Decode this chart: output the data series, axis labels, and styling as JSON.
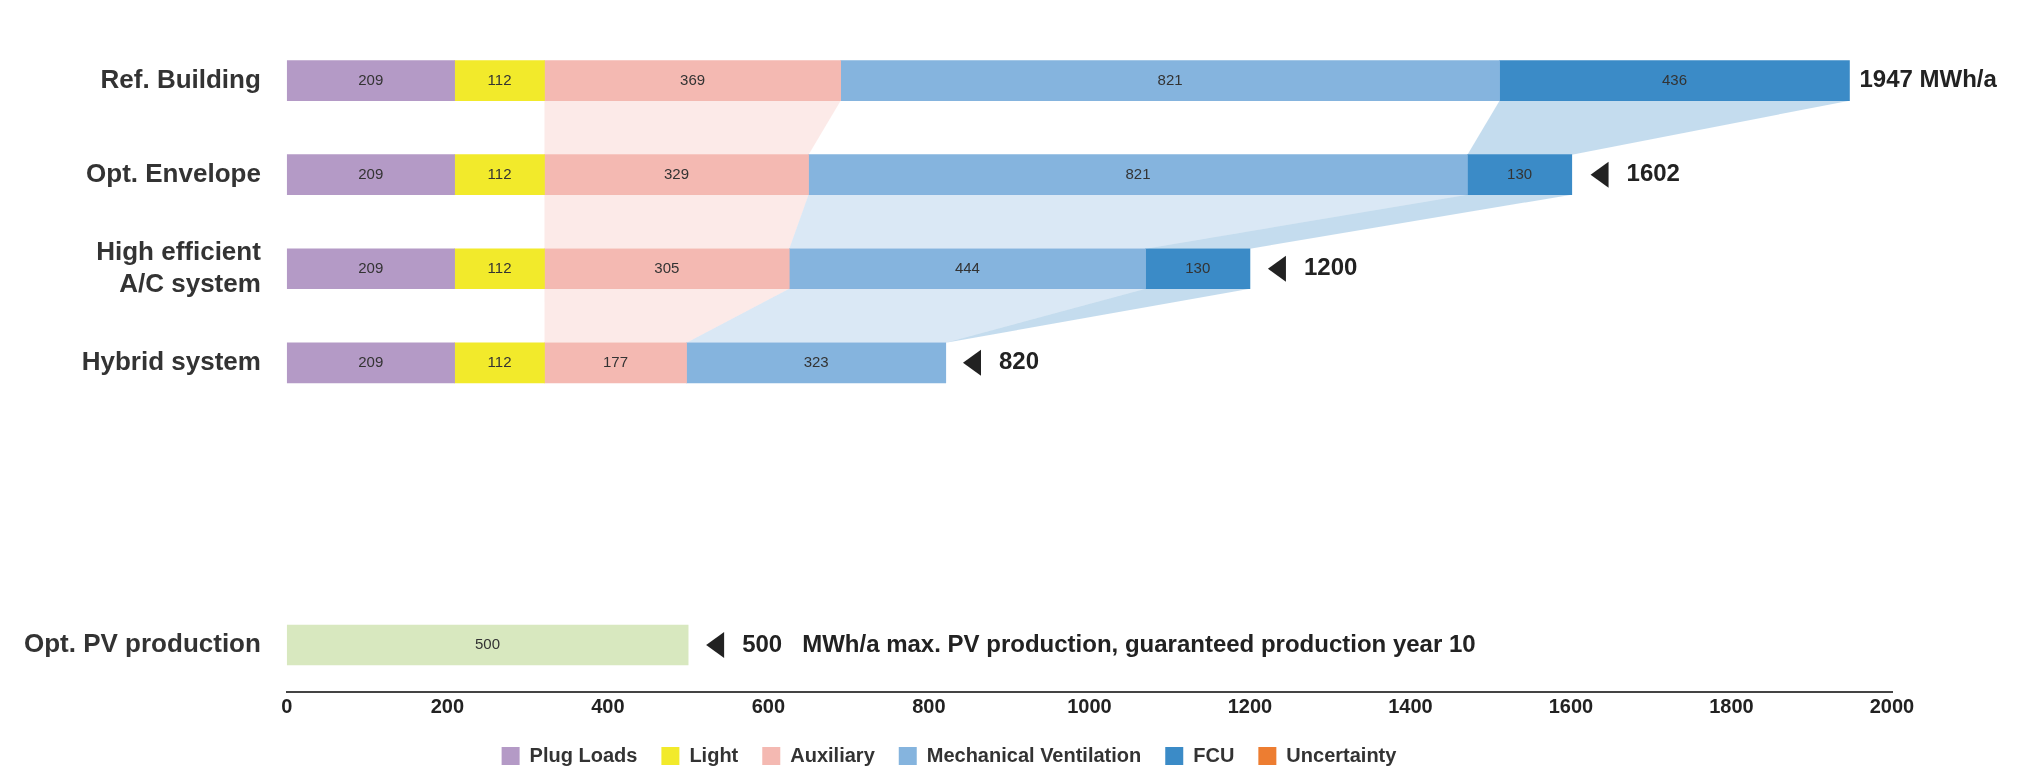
{
  "chart_data": {
    "type": "bar",
    "orientation": "horizontal",
    "stacked": true,
    "data_labels": true,
    "legend": "bottom",
    "categories": [
      "Ref. Building",
      "Opt. Envelope",
      "High efficient\nA/C system",
      "Hybrid system",
      null,
      null,
      "Opt. PV production"
    ],
    "series": [
      {
        "name": "Plug Loads",
        "color": "#b49ac6",
        "values": [
          209,
          209,
          209,
          209,
          null,
          null,
          null
        ]
      },
      {
        "name": "Light",
        "color": "#f2ea2b",
        "values": [
          112,
          112,
          112,
          112,
          null,
          null,
          null
        ]
      },
      {
        "name": "Auxiliary",
        "color": "#f4b9b2",
        "values": [
          369,
          329,
          305,
          177,
          null,
          null,
          null
        ]
      },
      {
        "name": "Mechanical Ventilation",
        "color": "#85b4de",
        "values": [
          821,
          821,
          444,
          323,
          null,
          null,
          null
        ]
      },
      {
        "name": "FCU",
        "color": "#3b8bc7",
        "values": [
          436,
          130,
          130,
          null,
          null,
          null,
          null
        ]
      },
      {
        "name": "Uncertainty",
        "color": "#ed7d31",
        "values": [
          null,
          null,
          null,
          null,
          null,
          null,
          null
        ]
      },
      {
        "color": "#d8e8bf",
        "values": [
          null,
          null,
          null,
          null,
          null,
          null,
          500
        ]
      }
    ],
    "xlim": [
      0,
      2000
    ],
    "xticks": [
      0,
      200,
      400,
      600,
      800,
      1000,
      1200,
      1400,
      1600,
      1800,
      2000
    ],
    "annotations": [
      {
        "text": "1947 MWh/a",
        "x": 1947,
        "y": "Ref. Building"
      },
      {
        "text": "1602",
        "x": 1602,
        "y": "Opt. Envelope"
      },
      {
        "text": "1200",
        "x": 1200,
        "y": "High efficient\nA/C system"
      },
      {
        "text": "820",
        "x": 820,
        "y": "Hybrid system"
      },
      {
        "text": "500   MWh/a max. PV production, guaranteed production year 10",
        "x": 500,
        "y": "Opt. PV production"
      }
    ]
  }
}
